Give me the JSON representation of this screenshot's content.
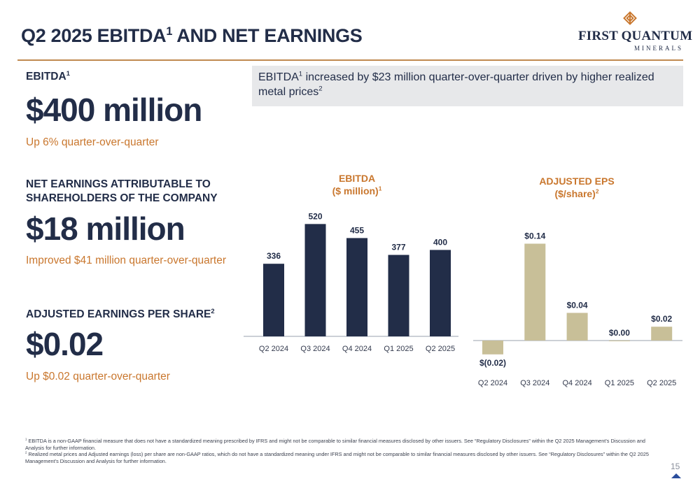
{
  "header": {
    "title": "Q2 2025 EBITDA",
    "title_sup": "1",
    "title_rest": " AND NET EARNINGS"
  },
  "logo": {
    "name": "FIRST QUANTUM",
    "sub": "MINERALS",
    "icon": "diamond-knot-icon"
  },
  "kpis": {
    "ebitda": {
      "label": "EBITDA",
      "label_sup": "1",
      "value": "$400 million",
      "note": "Up 6% quarter-over-quarter"
    },
    "net_earnings": {
      "label_line1": "NET EARNINGS ATTRIBUTABLE TO",
      "label_line2": "SHAREHOLDERS OF THE COMPANY",
      "value": "$18 million",
      "note": "Improved $41 million quarter-over-quarter"
    },
    "eps": {
      "label": "ADJUSTED EARNINGS PER SHARE",
      "label_sup": "2",
      "value": "$0.02",
      "note": "Up $0.02 quarter-over-quarter"
    }
  },
  "highlight": {
    "prefix": "EBITDA",
    "sup1": "1",
    "text": " increased by $23 million quarter-over-quarter driven by higher realized metal prices",
    "sup2": "2"
  },
  "colors": {
    "navy": "#222d48",
    "orange": "#c9772e",
    "tan": "#c8bf98",
    "rule": "#c08a50"
  },
  "chart_data": [
    {
      "type": "bar",
      "title": "EBITDA",
      "subtitle": "($ million)",
      "subtitle_sup": "1",
      "categories": [
        "Q2 2024",
        "Q3 2024",
        "Q4 2024",
        "Q1 2025",
        "Q2 2025"
      ],
      "values": [
        336,
        520,
        455,
        377,
        400
      ],
      "data_labels": [
        "336",
        "520",
        "455",
        "377",
        "400"
      ],
      "color": "#222d48",
      "ylim": [
        0,
        560
      ]
    },
    {
      "type": "bar",
      "title": "ADJUSTED EPS",
      "subtitle": "($/share)",
      "subtitle_sup": "2",
      "categories": [
        "Q2 2024",
        "Q3 2024",
        "Q4 2024",
        "Q1 2025",
        "Q2 2025"
      ],
      "values": [
        -0.02,
        0.14,
        0.04,
        0.0,
        0.02
      ],
      "data_labels": [
        "$(0.02)",
        "$0.14",
        "$0.04",
        "$0.00",
        "$0.02"
      ],
      "color": "#c8bf98",
      "ylim": [
        -0.03,
        0.16
      ]
    }
  ],
  "footnotes": {
    "f1_mark": "1",
    "f1": " EBITDA is a non-GAAP financial measure that does not have a standardized meaning prescribed by IFRS and might not be comparable to similar financial measures disclosed by other issuers. See “Regulatory Disclosures” within the Q2 2025 Management’s Discussion and Analysis for further information.",
    "f2_mark": "2",
    "f2": " Realized metal prices and Adjusted earnings (loss) per share are non-GAAP ratios, which do not have a standardized meaning under IFRS and might not be comparable to similar financial measures disclosed by other issuers. See “Regulatory Disclosures” within the Q2 2025 Management’s Discussion and Analysis for further information."
  },
  "page": {
    "number": "15",
    "nav_icon": "up-arrow-icon"
  }
}
